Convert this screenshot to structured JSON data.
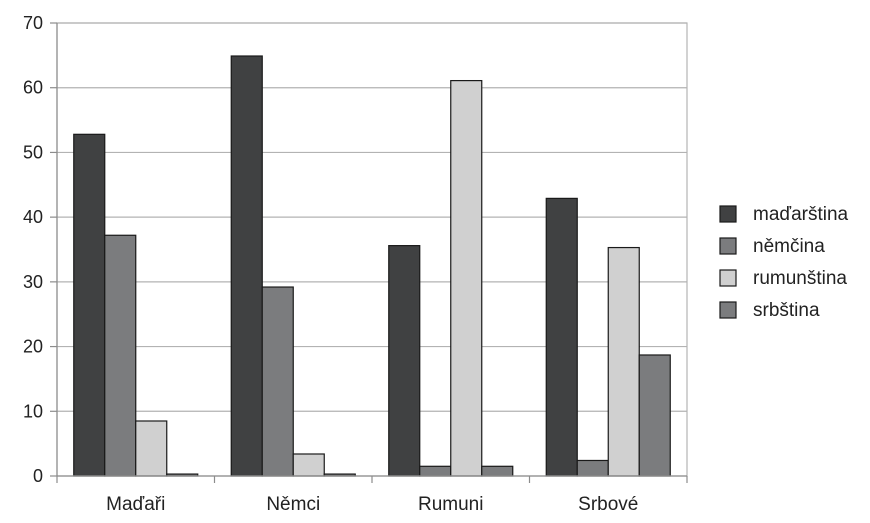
{
  "chart_data": {
    "type": "bar",
    "categories": [
      "Maďaři",
      "Němci",
      "Rumuni",
      "Srbové"
    ],
    "series": [
      {
        "name": "maďarština",
        "values": [
          52.8,
          64.9,
          35.6,
          42.9
        ],
        "color": "#404142"
      },
      {
        "name": "němčina",
        "values": [
          37.2,
          29.2,
          1.5,
          2.4
        ],
        "color": "#7b7c7e"
      },
      {
        "name": "rumunština",
        "values": [
          8.5,
          3.4,
          61.1,
          35.3
        ],
        "color": "#d0d0d0"
      },
      {
        "name": "srbština",
        "values": [
          0.3,
          0.3,
          1.5,
          18.7
        ],
        "color": "#7b7c7e"
      }
    ],
    "y_ticks": [
      "0",
      "10",
      "20",
      "30",
      "40",
      "50",
      "60",
      "70"
    ],
    "ylim": [
      0,
      70
    ],
    "grid": true,
    "legend_position": "right"
  }
}
